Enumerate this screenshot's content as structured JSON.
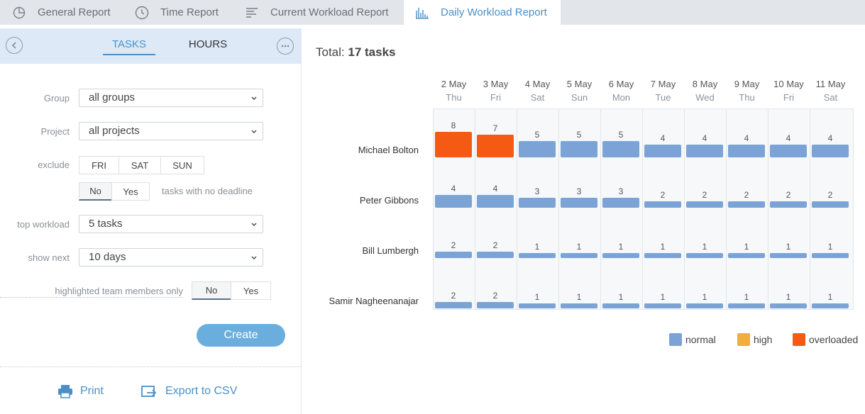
{
  "tabs": [
    {
      "label": "General Report",
      "icon": "pie-chart-icon"
    },
    {
      "label": "Time Report",
      "icon": "clock-icon"
    },
    {
      "label": "Current Workload Report",
      "icon": "list-bars-icon"
    },
    {
      "label": "Daily Workload Report",
      "icon": "bar-chart-icon",
      "active": true
    }
  ],
  "panel": {
    "tasks_tab": "TASKS",
    "hours_tab": "HOURS",
    "group_label": "Group",
    "group_value": "all groups",
    "project_label": "Project",
    "project_value": "all projects",
    "exclude_label": "exclude",
    "exclude_days": [
      "FRI",
      "SAT",
      "SUN"
    ],
    "deadline_no": "No",
    "deadline_yes": "Yes",
    "deadline_text": "tasks with no deadline",
    "top_workload_label": "top workload",
    "top_workload_value": "5 tasks",
    "show_next_label": "show next",
    "show_next_value": "10 days",
    "highlighted_label": "highlighted team members only",
    "highlighted_no": "No",
    "highlighted_yes": "Yes",
    "create_label": "Create",
    "print_label": "Print",
    "export_label": "Export to CSV"
  },
  "report": {
    "total_label": "Total:",
    "total_value": "17 tasks"
  },
  "chart_data": {
    "type": "heatmap",
    "days": [
      {
        "date": "2 May",
        "dow": "Thu"
      },
      {
        "date": "3 May",
        "dow": "Fri"
      },
      {
        "date": "4 May",
        "dow": "Sat"
      },
      {
        "date": "5 May",
        "dow": "Sun"
      },
      {
        "date": "6 May",
        "dow": "Mon"
      },
      {
        "date": "7 May",
        "dow": "Tue"
      },
      {
        "date": "8 May",
        "dow": "Wed"
      },
      {
        "date": "9 May",
        "dow": "Thu"
      },
      {
        "date": "10 May",
        "dow": "Fri"
      },
      {
        "date": "11 May",
        "dow": "Sat"
      }
    ],
    "members": [
      {
        "name": "Michael Bolton",
        "values": [
          8,
          7,
          5,
          5,
          5,
          4,
          4,
          4,
          4,
          4
        ],
        "status": [
          "overloaded",
          "overloaded",
          "normal",
          "normal",
          "normal",
          "normal",
          "normal",
          "normal",
          "normal",
          "normal"
        ]
      },
      {
        "name": "Peter Gibbons",
        "values": [
          4,
          4,
          3,
          3,
          3,
          2,
          2,
          2,
          2,
          2
        ],
        "status": [
          "normal",
          "normal",
          "normal",
          "normal",
          "normal",
          "normal",
          "normal",
          "normal",
          "normal",
          "normal"
        ]
      },
      {
        "name": "Bill Lumbergh",
        "values": [
          2,
          2,
          1,
          1,
          1,
          1,
          1,
          1,
          1,
          1
        ],
        "status": [
          "normal",
          "normal",
          "normal",
          "normal",
          "normal",
          "normal",
          "normal",
          "normal",
          "normal",
          "normal"
        ]
      },
      {
        "name": "Samir Nagheenanajar",
        "values": [
          2,
          2,
          1,
          1,
          1,
          1,
          1,
          1,
          1,
          1
        ],
        "status": [
          "normal",
          "normal",
          "normal",
          "normal",
          "normal",
          "normal",
          "normal",
          "normal",
          "normal",
          "normal"
        ]
      }
    ],
    "legend": [
      {
        "label": "normal",
        "color": "#7ba3d6"
      },
      {
        "label": "high",
        "color": "#f0ae3c"
      },
      {
        "label": "overloaded",
        "color": "#f55a14"
      }
    ]
  }
}
